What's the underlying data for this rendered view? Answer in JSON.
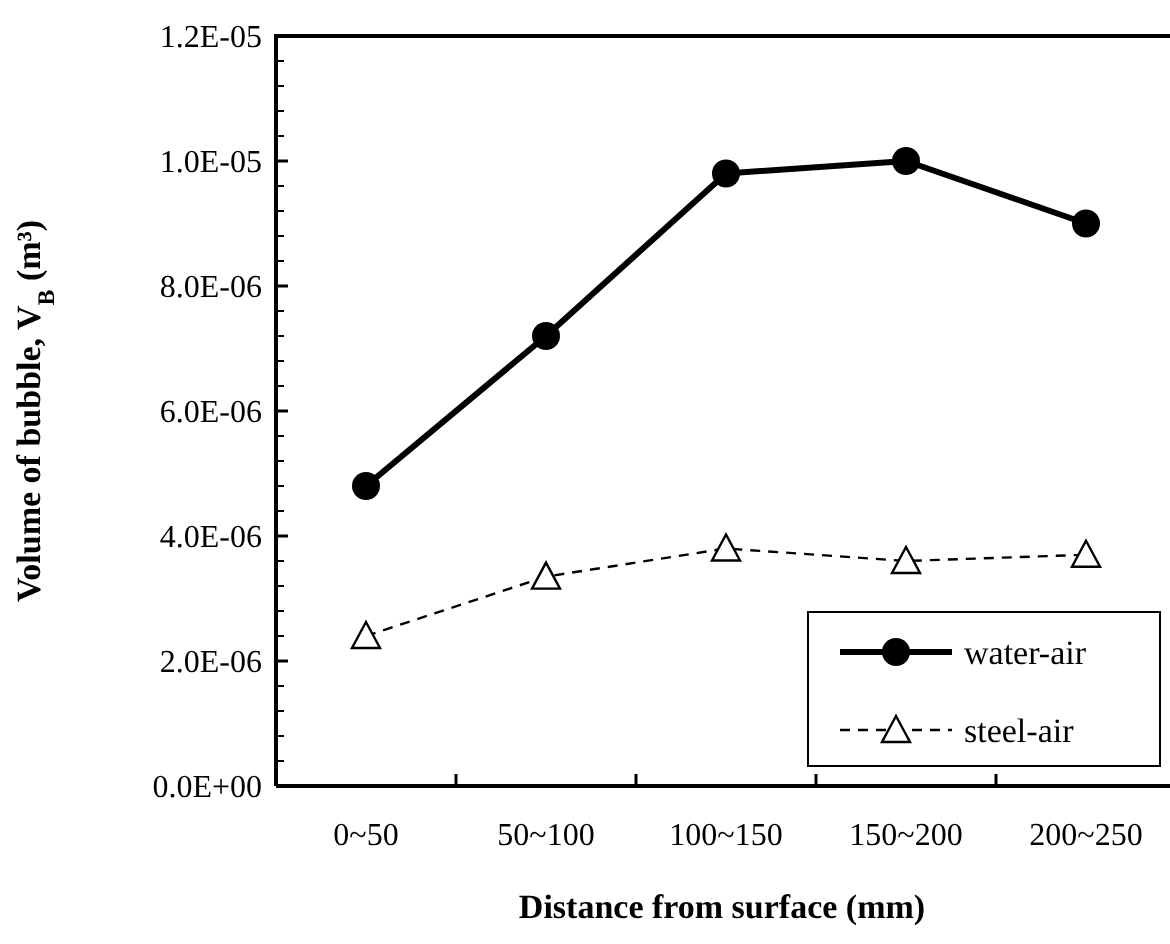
{
  "chart_data": {
    "type": "line",
    "xlabel": "Distance from surface (mm)",
    "ylabel": "Volume of bubble, V$_{B}$ (m³)",
    "categories": [
      "0~50",
      "50~100",
      "100~150",
      "150~200",
      "200~250"
    ],
    "series": [
      {
        "name": "water-air",
        "color": "#000000",
        "values": [
          4.8e-06,
          7.2e-06,
          9.8e-06,
          1e-05,
          9e-06
        ],
        "marker": "circle",
        "line_style": "solid"
      },
      {
        "name": "steel-air",
        "color": "#000000",
        "values": [
          2.4e-06,
          3.35e-06,
          3.8e-06,
          3.6e-06,
          3.7e-06
        ],
        "marker": "triangle",
        "line_style": "dashed"
      }
    ],
    "ylim": [
      0,
      1.2e-05
    ],
    "yticks": [
      {
        "value": 0,
        "label": "0.0E+00"
      },
      {
        "value": 2e-06,
        "label": "2.0E-06"
      },
      {
        "value": 4e-06,
        "label": "4.0E-06"
      },
      {
        "value": 6e-06,
        "label": "6.0E-06"
      },
      {
        "value": 8e-06,
        "label": "8.0E-06"
      },
      {
        "value": 1e-05,
        "label": "1.0E-05"
      },
      {
        "value": 1.2e-05,
        "label": "1.2E-05"
      }
    ],
    "grid": false,
    "legend": "bottom right"
  }
}
